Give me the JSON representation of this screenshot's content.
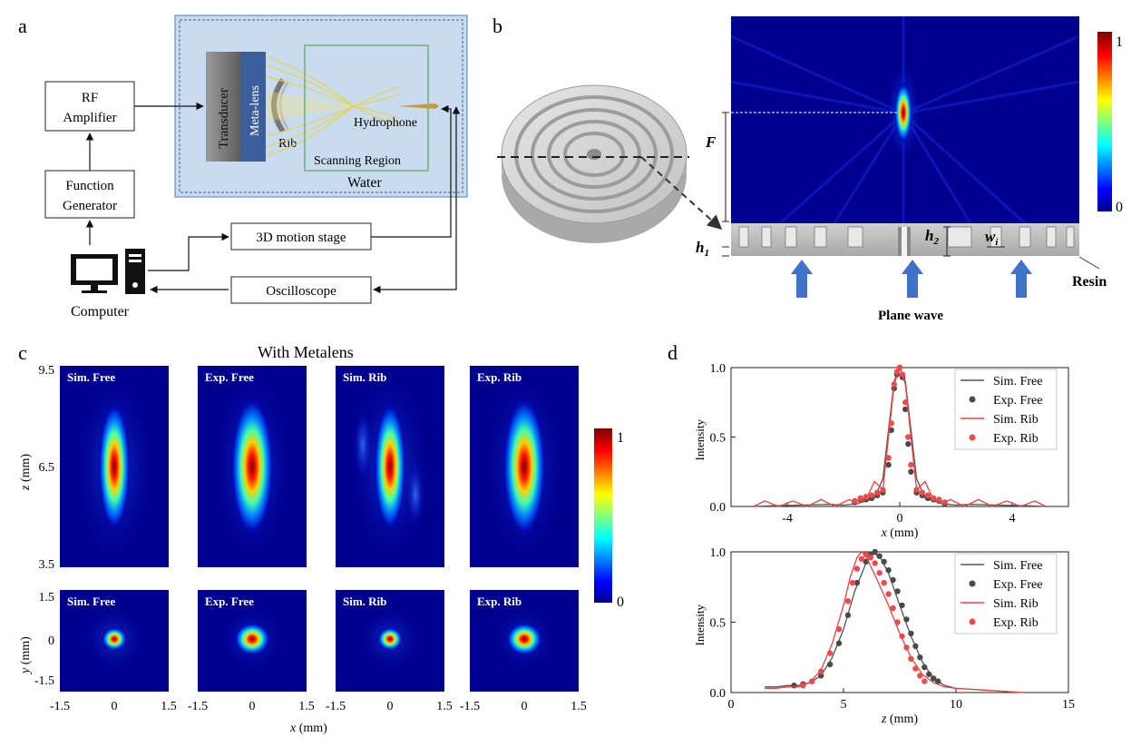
{
  "panel_a": {
    "label": "a",
    "rf_amplifier": [
      "RF",
      "Amplifier"
    ],
    "function_generator": [
      "Function",
      "Generator"
    ],
    "motion_stage": "3D motion stage",
    "oscilloscope": "Oscilloscope",
    "computer": "Computer",
    "transducer": "Transducer",
    "meta_lens": "Meta-lens",
    "rib": "Rib",
    "hydrophone": "Hydrophone",
    "scanning_region": "Scanning Region",
    "water": "Water"
  },
  "panel_b": {
    "label": "b",
    "F": "F",
    "h1": "h",
    "h1_sub": "1",
    "h2": "h",
    "h2_sub": "2",
    "wi": "w",
    "wi_sub": "i",
    "resin": "Resin",
    "plane_wave": "Plane wave",
    "colorbar_max": "1",
    "colorbar_min": "0"
  },
  "panel_c": {
    "label": "c",
    "title": "With Metalens",
    "top_labels": [
      "Sim. Free",
      "Exp. Free",
      "Sim. Rib",
      "Exp.  Rib"
    ],
    "bottom_labels": [
      "Sim. Free",
      "Exp. Free",
      "Sim. Rib",
      "Exp. Rib"
    ],
    "z_ticks": [
      "9.5",
      "6.5",
      "3.5"
    ],
    "z_label_italic": "z",
    "z_label_unit": " (mm)",
    "y_ticks": [
      "1.5",
      "0",
      "-1.5"
    ],
    "y_label_italic": "y",
    "y_label_unit": " (mm)",
    "x_ticks": [
      "-1.5",
      "0",
      "1.5"
    ],
    "x_label_italic": "x",
    "x_label_unit": " (mm)",
    "colorbar_max": "1",
    "colorbar_min": "0"
  },
  "panel_d": {
    "label": "d",
    "legend": [
      "Sim. Free",
      "Exp. Free",
      "Sim. Rib",
      "Exp. Rib"
    ]
  },
  "colors": {
    "sim_free": "#555555",
    "exp_free": "#4a4a4a",
    "sim_rib": "#ee4040",
    "exp_rib": "#ef4a4a",
    "water_bg": "#c9dcef",
    "field_bg": "#00008f",
    "arrow": "#3f72c9"
  },
  "chart_data": [
    {
      "type": "line",
      "xlabel": "x (mm)",
      "ylabel": "Intensity",
      "xlim": [
        -6,
        6
      ],
      "ylim": [
        0,
        1
      ],
      "xticks": [
        "-4",
        "0",
        "4"
      ],
      "yticks": [
        "0.0",
        "0.5",
        "1.0"
      ],
      "legend_position": "top-right",
      "series": [
        {
          "name": "Sim. Free",
          "style": "line",
          "x": [
            -5.2,
            -4.5,
            -3.5,
            -2.5,
            -2.0,
            -1.5,
            -1.2,
            -0.9,
            -0.6,
            -0.4,
            -0.2,
            0.0,
            0.2,
            0.4,
            0.6,
            0.9,
            1.2,
            1.5,
            2.0,
            2.5,
            3.5,
            4.5,
            5.2
          ],
          "values": [
            0.0,
            0.005,
            0.01,
            0.015,
            0.01,
            0.02,
            0.04,
            0.06,
            0.2,
            0.55,
            0.9,
            1.0,
            0.9,
            0.55,
            0.2,
            0.06,
            0.04,
            0.02,
            0.01,
            0.015,
            0.01,
            0.005,
            0.0
          ]
        },
        {
          "name": "Exp. Free",
          "style": "points",
          "x": [
            -1.6,
            -1.4,
            -1.2,
            -1.0,
            -0.8,
            -0.6,
            -0.4,
            -0.3,
            -0.2,
            -0.1,
            0.0,
            0.1,
            0.2,
            0.3,
            0.4,
            0.6,
            0.8,
            1.0,
            1.2,
            1.4,
            1.6
          ],
          "values": [
            0.03,
            0.05,
            0.05,
            0.06,
            0.08,
            0.1,
            0.3,
            0.55,
            0.85,
            0.95,
            1.0,
            0.93,
            0.7,
            0.45,
            0.25,
            0.1,
            0.08,
            0.06,
            0.05,
            0.04,
            0.02
          ]
        },
        {
          "name": "Sim. Rib",
          "style": "line",
          "x": [
            -5.2,
            -4.8,
            -4.3,
            -3.8,
            -3.3,
            -2.8,
            -2.3,
            -1.8,
            -1.5,
            -1.2,
            -0.9,
            -0.6,
            -0.4,
            -0.2,
            0.0,
            0.2,
            0.4,
            0.6,
            0.9,
            1.2,
            1.5,
            1.8,
            2.3,
            2.8,
            3.3,
            3.8,
            4.3,
            4.8,
            5.2
          ],
          "values": [
            0.0,
            0.04,
            0.0,
            0.04,
            0.0,
            0.05,
            0.0,
            0.05,
            0.02,
            0.05,
            0.18,
            0.12,
            0.5,
            0.88,
            1.0,
            0.88,
            0.5,
            0.12,
            0.18,
            0.05,
            0.02,
            0.05,
            0.0,
            0.05,
            0.0,
            0.04,
            0.0,
            0.04,
            0.0
          ]
        },
        {
          "name": "Exp. Rib",
          "style": "points",
          "x": [
            -1.6,
            -1.4,
            -1.2,
            -1.0,
            -0.8,
            -0.6,
            -0.4,
            -0.3,
            -0.2,
            -0.1,
            0.0,
            0.1,
            0.2,
            0.3,
            0.4,
            0.6,
            0.8,
            1.0,
            1.2,
            1.4,
            1.6
          ],
          "values": [
            0.04,
            0.06,
            0.07,
            0.08,
            0.1,
            0.12,
            0.35,
            0.6,
            0.88,
            0.97,
            1.0,
            0.95,
            0.75,
            0.5,
            0.3,
            0.12,
            0.1,
            0.08,
            0.06,
            0.05,
            0.03
          ]
        }
      ]
    },
    {
      "type": "line",
      "xlabel": "z (mm)",
      "ylabel": "Intensity",
      "xlim": [
        0,
        15
      ],
      "ylim": [
        0,
        1
      ],
      "xticks": [
        "0",
        "5",
        "10",
        "15"
      ],
      "yticks": [
        "0.0",
        "0.5",
        "1.0"
      ],
      "legend_position": "top-right",
      "series": [
        {
          "name": "Sim. Free",
          "style": "line",
          "x": [
            1.5,
            2,
            2.5,
            3,
            3.5,
            4,
            4.5,
            5,
            5.5,
            6,
            6.3,
            6.6,
            7,
            7.5,
            8,
            8.5,
            9,
            9.5,
            10,
            11,
            12,
            13
          ],
          "values": [
            0.04,
            0.04,
            0.05,
            0.05,
            0.07,
            0.12,
            0.25,
            0.45,
            0.72,
            0.92,
            0.99,
            0.97,
            0.85,
            0.62,
            0.4,
            0.22,
            0.1,
            0.05,
            0.03,
            0.02,
            0.01,
            0.0
          ]
        },
        {
          "name": "Exp. Free",
          "style": "points",
          "x": [
            2.8,
            3.2,
            3.6,
            4.0,
            4.4,
            4.8,
            5.2,
            5.6,
            6.0,
            6.2,
            6.4,
            6.6,
            6.8,
            7.0,
            7.2,
            7.4,
            7.6,
            7.8,
            8.0,
            8.2,
            8.4,
            8.6,
            8.8,
            9.0,
            9.2
          ],
          "values": [
            0.05,
            0.06,
            0.08,
            0.12,
            0.2,
            0.35,
            0.55,
            0.78,
            0.93,
            0.98,
            1.0,
            0.97,
            0.93,
            0.87,
            0.8,
            0.72,
            0.62,
            0.52,
            0.42,
            0.33,
            0.25,
            0.18,
            0.13,
            0.1,
            0.08
          ]
        },
        {
          "name": "Sim. Rib",
          "style": "line",
          "x": [
            1.5,
            2,
            2.5,
            3,
            3.5,
            4,
            4.5,
            5,
            5.3,
            5.6,
            5.8,
            6.0,
            6.2,
            6.5,
            7,
            7.5,
            8,
            8.5,
            9,
            9.5,
            10,
            11,
            12,
            13
          ],
          "values": [
            0.03,
            0.03,
            0.04,
            0.04,
            0.07,
            0.16,
            0.35,
            0.62,
            0.82,
            0.96,
            1.0,
            0.97,
            0.9,
            0.8,
            0.62,
            0.42,
            0.25,
            0.13,
            0.07,
            0.04,
            0.03,
            0.02,
            0.01,
            0.0
          ]
        },
        {
          "name": "Exp. Rib",
          "style": "points",
          "x": [
            3.2,
            3.6,
            4.0,
            4.4,
            4.8,
            5.2,
            5.4,
            5.6,
            5.8,
            6.0,
            6.2,
            6.4,
            6.6,
            6.8,
            7.0,
            7.2,
            7.4,
            7.6,
            7.8,
            8.0,
            8.2,
            8.4,
            8.6
          ],
          "values": [
            0.05,
            0.08,
            0.15,
            0.28,
            0.45,
            0.65,
            0.78,
            0.88,
            0.95,
            0.98,
            0.96,
            0.92,
            0.85,
            0.78,
            0.7,
            0.6,
            0.5,
            0.4,
            0.32,
            0.24,
            0.17,
            0.12,
            0.08
          ]
        }
      ]
    }
  ]
}
